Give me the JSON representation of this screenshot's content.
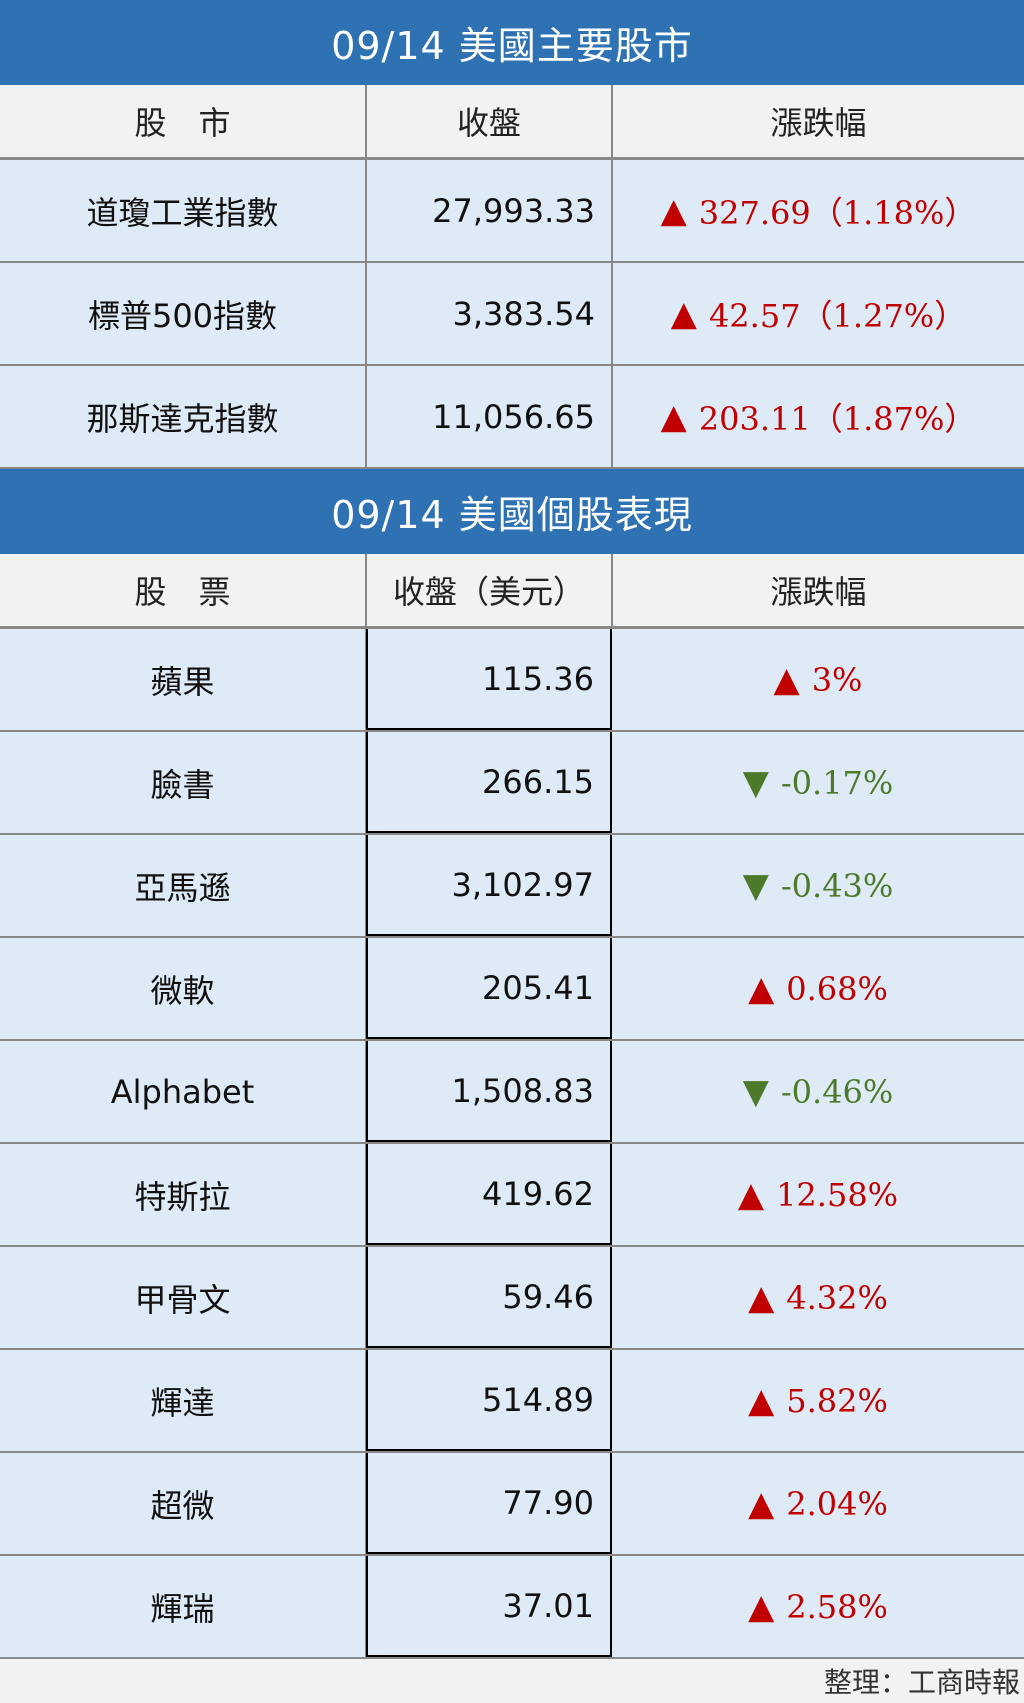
{
  "indices": {
    "title": "09/14 美國主要股市",
    "headers": [
      "股　市",
      "收盤",
      "漲跌幅"
    ],
    "rows": [
      {
        "name": "道瓊工業指數",
        "close": "27,993.33",
        "change": "327.69（1.18%）",
        "direction": "up"
      },
      {
        "name": "標普500指數",
        "close": "3,383.54",
        "change": "42.57（1.27%）",
        "direction": "up"
      },
      {
        "name": "那斯達克指數",
        "close": "11,056.65",
        "change": "203.11（1.87%）",
        "direction": "up"
      }
    ]
  },
  "stocks": {
    "title": "09/14 美國個股表現",
    "headers": [
      "股　票",
      "收盤（美元）",
      "漲跌幅"
    ],
    "rows": [
      {
        "name": "蘋果",
        "close": "115.36",
        "change": "3%",
        "direction": "up"
      },
      {
        "name": "臉書",
        "close": "266.15",
        "change": "-0.17%",
        "direction": "down"
      },
      {
        "name": "亞馬遜",
        "close": "3,102.97",
        "change": "-0.43%",
        "direction": "down"
      },
      {
        "name": "微軟",
        "close": "205.41",
        "change": "0.68%",
        "direction": "up"
      },
      {
        "name": "Alphabet",
        "close": "1,508.83",
        "change": "-0.46%",
        "direction": "down"
      },
      {
        "name": "特斯拉",
        "close": "419.62",
        "change": "12.58%",
        "direction": "up"
      },
      {
        "name": "甲骨文",
        "close": "59.46",
        "change": "4.32%",
        "direction": "up"
      },
      {
        "name": "輝達",
        "close": "514.89",
        "change": "5.82%",
        "direction": "up"
      },
      {
        "name": "超微",
        "close": "77.90",
        "change": "2.04%",
        "direction": "up"
      },
      {
        "name": "輝瑞",
        "close": "37.01",
        "change": "2.58%",
        "direction": "up"
      }
    ]
  },
  "footer": "整理：工商時報",
  "colors": {
    "header": "#2e72b4",
    "row": "#deeaf6",
    "up": "#c00000",
    "down": "#4d7a2a"
  },
  "icons": {
    "up": "triangle-up-icon",
    "down": "triangle-down-icon"
  }
}
